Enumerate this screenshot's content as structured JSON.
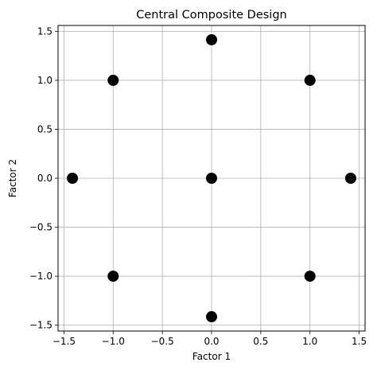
{
  "chart_data": {
    "type": "scatter",
    "title": "Central Composite Design",
    "xlabel": "Factor 1",
    "ylabel": "Factor 2",
    "xlim": [
      -1.56,
      1.56
    ],
    "ylim": [
      -1.56,
      1.56
    ],
    "grid": true,
    "xticks": [
      -1.5,
      -1.0,
      -0.5,
      0.0,
      0.5,
      1.0,
      1.5
    ],
    "yticks": [
      -1.5,
      -1.0,
      -0.5,
      0.0,
      0.5,
      1.0,
      1.5
    ],
    "xtick_labels": [
      "−1.5",
      "−1.0",
      "−0.5",
      "0.0",
      "0.5",
      "1.0",
      "1.5"
    ],
    "ytick_labels": [
      "−1.5",
      "−1.0",
      "−0.5",
      "0.0",
      "0.5",
      "1.0",
      "1.5"
    ],
    "marker_color": "#000000",
    "grid_color": "#b0b0b0",
    "points": [
      {
        "x": -1,
        "y": -1
      },
      {
        "x": 1,
        "y": -1
      },
      {
        "x": -1,
        "y": 1
      },
      {
        "x": 1,
        "y": 1
      },
      {
        "x": -1.414,
        "y": 0
      },
      {
        "x": 1.414,
        "y": 0
      },
      {
        "x": 0,
        "y": -1.414
      },
      {
        "x": 0,
        "y": 1.414
      },
      {
        "x": 0,
        "y": 0
      }
    ]
  }
}
